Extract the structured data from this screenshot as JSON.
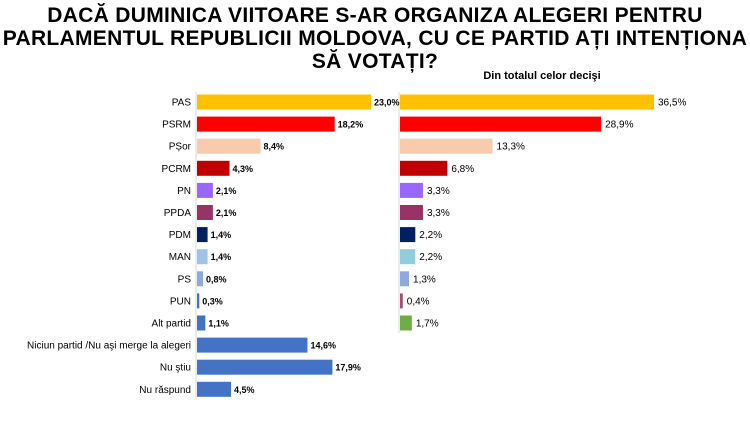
{
  "title": "DACĂ DUMINICA VIITOARE S-AR ORGANIZA ALEGERI PENTRU PARLAMENTUL REPUBLICII MOLDOVA, CU CE PARTID AȚI INTENȚIONA SĂ VOTAȚI?",
  "chart_data": [
    {
      "type": "bar",
      "orientation": "horizontal",
      "title": "",
      "categories": [
        "PAS",
        "PSRM",
        "PȘor",
        "PCRM",
        "PN",
        "PPDA",
        "PDM",
        "MAN",
        "PS",
        "PUN",
        "Alt partid",
        "Niciun partid /Nu aşi merge la alegeri",
        "Nu ştiu",
        "Nu răspund"
      ],
      "values": [
        23.0,
        18.2,
        8.4,
        4.3,
        2.1,
        2.1,
        1.4,
        1.4,
        0.8,
        0.3,
        1.1,
        14.6,
        17.9,
        4.5
      ],
      "value_labels": [
        "23,0%",
        "18,2%",
        "8,4%",
        "4,3%",
        "2,1%",
        "2,1%",
        "1,4%",
        "1,4%",
        "0,8%",
        "0,3%",
        "1,1%",
        "14,6%",
        "17,9%",
        "4,5%"
      ],
      "colors": [
        "#FFC000",
        "#FF0000",
        "#F8CBAD",
        "#C00000",
        "#9966FF",
        "#993366",
        "#002060",
        "#9DC3E6",
        "#8EA9DB",
        "#4472C4",
        "#4472C4",
        "#4472C4",
        "#4472C4",
        "#4472C4"
      ],
      "xlim": [
        0,
        23.0
      ],
      "grid": false,
      "legend": "none"
    },
    {
      "type": "bar",
      "orientation": "horizontal",
      "title": "Din totalul celor decişi",
      "categories": [
        "PAS",
        "PSRM",
        "PȘor",
        "PCRM",
        "PN",
        "PPDA",
        "PDM",
        "MAN",
        "PS",
        "PUN",
        "Alt partid"
      ],
      "values": [
        36.5,
        28.9,
        13.3,
        6.8,
        3.3,
        3.3,
        2.2,
        2.2,
        1.3,
        0.4,
        1.7
      ],
      "value_labels": [
        "36,5%",
        "28,9%",
        "13,3%",
        "6,8%",
        "3,3%",
        "3,3%",
        "2,2%",
        "2,2%",
        "1,3%",
        "0,4%",
        "1,7%"
      ],
      "colors": [
        "#FFC000",
        "#FF0000",
        "#F8CBAD",
        "#C00000",
        "#9966FF",
        "#993366",
        "#002060",
        "#92CDDC",
        "#8EA9DB",
        "#A05070",
        "#70AD47"
      ],
      "xlim": [
        0,
        36.5
      ],
      "grid": false,
      "legend": "none"
    }
  ]
}
